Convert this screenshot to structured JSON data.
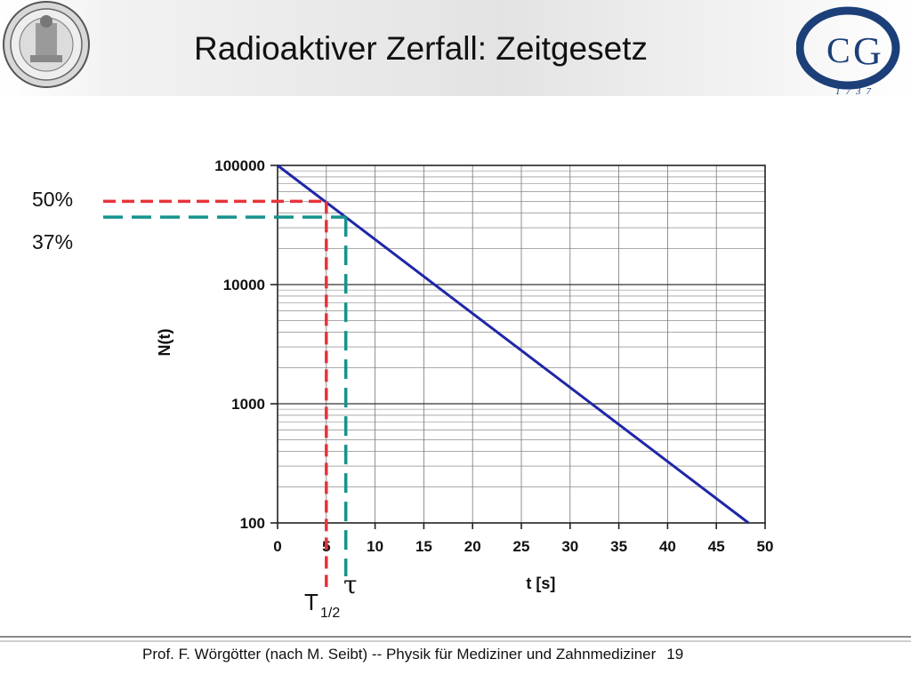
{
  "slide": {
    "title": "Radioaktiver Zerfall: Zeitgesetz",
    "footer": "Prof. F. Wörgötter (nach M. Seibt) -- Physik für Mediziner und Zahnmediziner",
    "page_number": "19"
  },
  "logo": {
    "year_text": "1737"
  },
  "chart_data": {
    "type": "line",
    "title": "",
    "xlabel": "t [s]",
    "ylabel": "N(t)",
    "xlim": [
      0,
      50
    ],
    "ylim": [
      100,
      100000
    ],
    "y_scale": "log",
    "grid": true,
    "x_ticks": [
      "0",
      "5",
      "10",
      "15",
      "20",
      "25",
      "30",
      "35",
      "40",
      "45",
      "50"
    ],
    "y_ticks": [
      "100",
      "1000",
      "10000",
      "100000"
    ],
    "series": [
      {
        "x": [
          0,
          48.3
        ],
        "y": [
          100000,
          100
        ],
        "color": "#1f27a8"
      }
    ],
    "annotations": {
      "half_life": {
        "label": "50%",
        "marker": "T",
        "marker_sub": "1/2",
        "x": 5,
        "y": 50000,
        "color": "#e8333a"
      },
      "tau": {
        "label": "37%",
        "marker": "τ",
        "x": 7,
        "y": 36800,
        "color": "#14938c"
      }
    }
  },
  "colors": {
    "grid": "#777777",
    "text": "#111111"
  }
}
